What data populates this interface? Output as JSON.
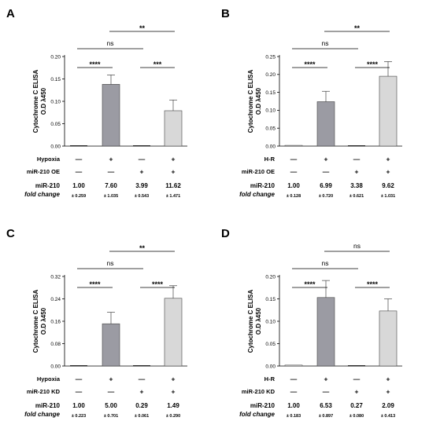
{
  "colors": {
    "bar_control": "#ffffff",
    "bar_hypoxia": "#9b9ba3",
    "bar_oe_alone": "#f0f0f0",
    "bar_combined": "#d8d8d8",
    "axis": "#000000"
  },
  "chart_data": [
    {
      "panel": "A",
      "type": "bar",
      "ylabel_line1": "Cytochrome C ELISA",
      "ylabel_line2": "O.D λ450",
      "yticks": [
        "0.00",
        "0.05",
        "0.10",
        "0.15",
        "0.20"
      ],
      "ylim": [
        0,
        0.2
      ],
      "values": [
        0.0,
        0.138,
        0.0,
        0.079
      ],
      "errors": [
        0.0,
        0.021,
        0.0,
        0.024
      ],
      "rows": [
        {
          "label": "Hypoxia",
          "signs": [
            "—",
            "+",
            "—",
            "+"
          ]
        },
        {
          "label": "miR-210 OE",
          "signs": [
            "—",
            "—",
            "+",
            "+"
          ]
        }
      ],
      "fold_label_1": "miR-210",
      "fold_label_2": "fold change",
      "fold_values": [
        "1.00",
        "7.60",
        "3.99",
        "11.62"
      ],
      "fold_sd": [
        "± 0.259",
        "± 1.035",
        "± 0.543",
        "± 1.471"
      ],
      "sig": [
        {
          "text": "****",
          "from": 0,
          "to": 1,
          "level": 0
        },
        {
          "text": "***",
          "from": 2,
          "to": 3,
          "level": 0
        },
        {
          "text": "ns",
          "from": 0,
          "to": 2,
          "level": 1
        },
        {
          "text": "**",
          "from": 1,
          "to": 3,
          "level": 2
        }
      ]
    },
    {
      "panel": "B",
      "type": "bar",
      "ylabel_line1": "Cytochrome C ELISA",
      "ylabel_line2": "O.D λ450",
      "yticks": [
        "0.00",
        "0.05",
        "0.10",
        "0.15",
        "0.20",
        "0.25"
      ],
      "ylim": [
        0,
        0.25
      ],
      "values": [
        0.002,
        0.124,
        0.0,
        0.195
      ],
      "errors": [
        0.0,
        0.029,
        0.0,
        0.041
      ],
      "rows": [
        {
          "label": "H-R",
          "signs": [
            "—",
            "+",
            "—",
            "+"
          ]
        },
        {
          "label": "miR-210 OE",
          "signs": [
            "—",
            "—",
            "+",
            "+"
          ]
        }
      ],
      "fold_label_1": "miR-210",
      "fold_label_2": "fold change",
      "fold_values": [
        "1.00",
        "6.99",
        "3.38",
        "9.62"
      ],
      "fold_sd": [
        "± 0.128",
        "± 0.720",
        "± 0.621",
        "± 1.031"
      ],
      "sig": [
        {
          "text": "****",
          "from": 0,
          "to": 1,
          "level": 0
        },
        {
          "text": "****",
          "from": 2,
          "to": 3,
          "level": 0
        },
        {
          "text": "ns",
          "from": 0,
          "to": 2,
          "level": 1
        },
        {
          "text": "**",
          "from": 1,
          "to": 3,
          "level": 2
        }
      ]
    },
    {
      "panel": "C",
      "type": "bar",
      "ylabel_line1": "Cytochrome C ELISA",
      "ylabel_line2": "O.D λ450",
      "yticks": [
        "0.00",
        "0.08",
        "0.16",
        "0.24",
        "0.32"
      ],
      "ylim": [
        0,
        0.32
      ],
      "values": [
        0.0,
        0.151,
        0.0,
        0.242
      ],
      "errors": [
        0.0,
        0.041,
        0.0,
        0.045
      ],
      "rows": [
        {
          "label": "Hypoxia",
          "signs": [
            "—",
            "+",
            "—",
            "+"
          ]
        },
        {
          "label": "miR-210 KD",
          "signs": [
            "—",
            "—",
            "+",
            "+"
          ]
        }
      ],
      "fold_label_1": "miR-210",
      "fold_label_2": "fold change",
      "fold_values": [
        "1.00",
        "5.00",
        "0.29",
        "1.49"
      ],
      "fold_sd": [
        "± 0.223",
        "± 0.701",
        "± 0.061",
        "± 0.290"
      ],
      "sig": [
        {
          "text": "****",
          "from": 0,
          "to": 1,
          "level": 0
        },
        {
          "text": "****",
          "from": 2,
          "to": 3,
          "level": 0
        },
        {
          "text": "ns",
          "from": 0,
          "to": 2,
          "level": 1
        },
        {
          "text": "**",
          "from": 1,
          "to": 3,
          "level": 2
        }
      ]
    },
    {
      "panel": "D",
      "type": "bar",
      "ylabel_line1": "Cytochrome C ELISA",
      "ylabel_line2": "O.D λ450",
      "yticks": [
        "0.00",
        "0.05",
        "0.10",
        "0.15",
        "0.20"
      ],
      "ylim": [
        0,
        0.2
      ],
      "values": [
        0.002,
        0.153,
        0.0,
        0.123
      ],
      "errors": [
        0.0,
        0.038,
        0.0,
        0.027
      ],
      "rows": [
        {
          "label": "H-R",
          "signs": [
            "—",
            "+",
            "—",
            "+"
          ]
        },
        {
          "label": "miR-210 KD",
          "signs": [
            "—",
            "—",
            "+",
            "+"
          ]
        }
      ],
      "fold_label_1": "miR-210",
      "fold_label_2": "fold change",
      "fold_values": [
        "1.00",
        "6.53",
        "0.27",
        "2.09"
      ],
      "fold_sd": [
        "± 0.183",
        "± 0.897",
        "± 0.080",
        "± 0.413"
      ],
      "sig": [
        {
          "text": "****",
          "from": 0,
          "to": 1,
          "level": 0
        },
        {
          "text": "****",
          "from": 2,
          "to": 3,
          "level": 0
        },
        {
          "text": "ns",
          "from": 0,
          "to": 2,
          "level": 1
        },
        {
          "text": "ns",
          "from": 1,
          "to": 3,
          "level": 2
        }
      ]
    }
  ]
}
